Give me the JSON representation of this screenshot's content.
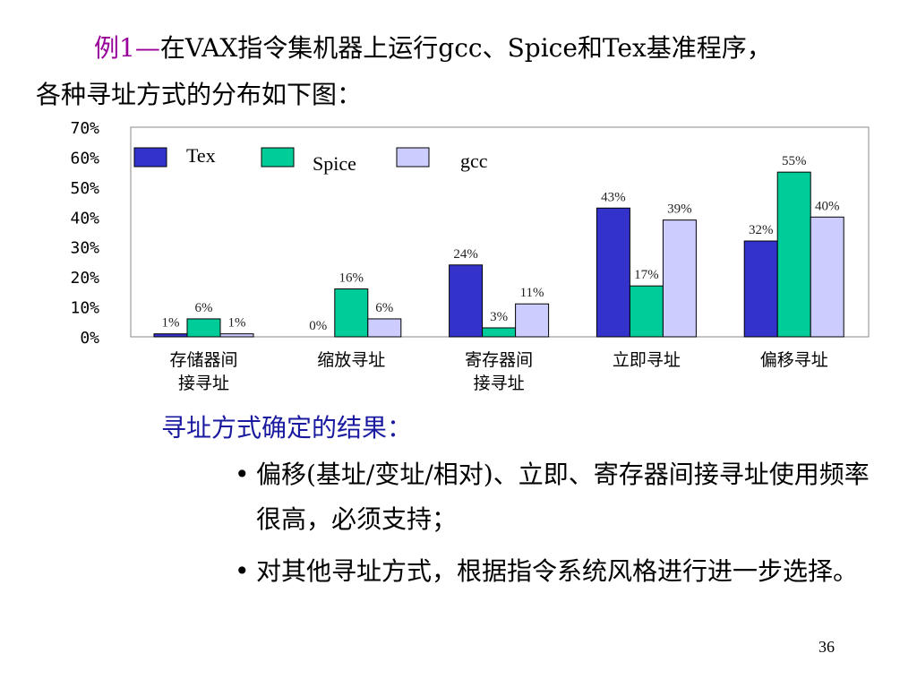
{
  "intro": {
    "prefix": "例1—",
    "line1_rest": "在VAX指令集机器上运行gcc、Spice和Tex基准程序，",
    "line2": "各种寻址方式的分布如下图："
  },
  "chart_data": {
    "type": "bar",
    "categories": [
      [
        "存储器间",
        "接寻址"
      ],
      [
        "缩放寻址"
      ],
      [
        "寄存器间",
        "接寻址"
      ],
      [
        "立即寻址"
      ],
      [
        "偏移寻址"
      ]
    ],
    "series": [
      {
        "name": "Tex",
        "color": "#3333cc",
        "values": [
          1,
          0,
          24,
          43,
          32
        ],
        "labels": [
          "1%",
          "0%",
          "24%",
          "43%",
          "32%"
        ]
      },
      {
        "name": "Spice",
        "color": "#00cc99",
        "values": [
          6,
          16,
          3,
          17,
          55
        ],
        "labels": [
          "6%",
          "16%",
          "3%",
          "17%",
          "55%"
        ]
      },
      {
        "name": "gcc",
        "color": "#ccccff",
        "values": [
          1,
          6,
          11,
          39,
          40
        ],
        "labels": [
          "1%",
          "6%",
          "11%",
          "39%",
          "40%"
        ]
      }
    ],
    "yticks": [
      "70%",
      "60%",
      "50%",
      "40%",
      "30%",
      "20%",
      "10%",
      "0%"
    ],
    "ylim": [
      0,
      70
    ],
    "legend": "top-left",
    "grid": false
  },
  "result_heading": "寻址方式确定的结果：",
  "bullets": [
    "偏移(基址/变址/相对)、立即、寄存器间接寻址使用频率很高，必须支持；",
    "对其他寻址方式，根据指令系统风格进行进一步选择。"
  ],
  "bullet_glyph": "•",
  "page_number": "36"
}
